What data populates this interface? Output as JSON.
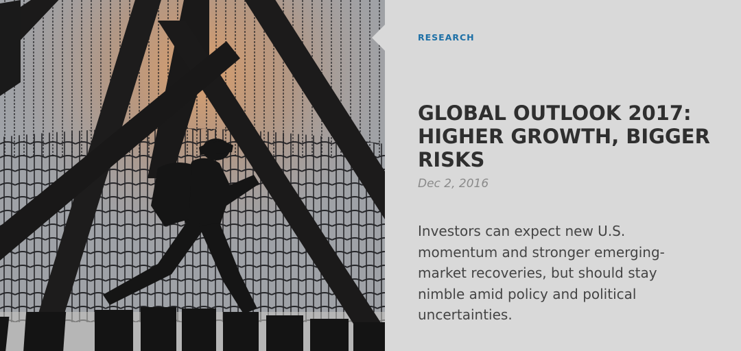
{
  "article": {
    "category": "RESEARCH",
    "title": "GLOBAL OUTLOOK 2017: HIGHER GROWTH, BIGGER RISKS",
    "date": "Dec 2, 2016",
    "summary": "Investors can expect new U.S. momentum and stronger emerging-market recoveries, but should stay nimble amid policy and political uncertainties."
  },
  "hero_image": {
    "subject": "person silhouette climbing rope net"
  },
  "colors": {
    "category": "#1c6fa6",
    "title": "#2f2f2f",
    "date": "#8a8a8a",
    "summary": "#444444",
    "panel_bg": "#d9d9d9"
  }
}
